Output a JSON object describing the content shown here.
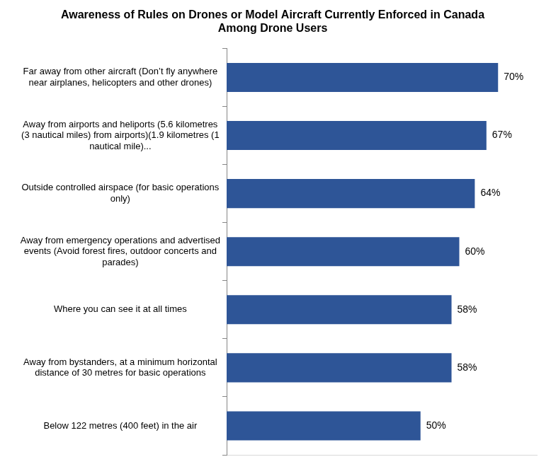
{
  "chart_data": {
    "type": "bar",
    "title": "Awareness of Rules on Drones or Model Aircraft Currently Enforced in Canada Among Drone Users",
    "categories": [
      "Far away from other aircraft (Don’t fly anywhere near airplanes, helicopters and other drones)",
      "Away from airports and heliports (5.6 kilometres (3 nautical miles) from airports)(1.9 kilometres (1 nautical mile)...",
      "Outside controlled airspace (for basic operations only)",
      "Away from emergency operations and advertised events (Avoid forest fires, outdoor concerts and parades)",
      "Where you can see it at all times",
      "Away from bystanders, at a minimum horizontal distance of 30 metres for basic operations",
      "Below 122 metres (400 feet) in the air"
    ],
    "values": [
      70,
      67,
      64,
      60,
      58,
      58,
      50
    ],
    "value_labels": [
      "70%",
      "67%",
      "64%",
      "60%",
      "58%",
      "58%",
      "50%"
    ],
    "color": "#2e5597",
    "orientation": "horizontal",
    "xlim": [
      0,
      80
    ],
    "grid": false,
    "data_labels": true,
    "tick_labels": "y"
  }
}
